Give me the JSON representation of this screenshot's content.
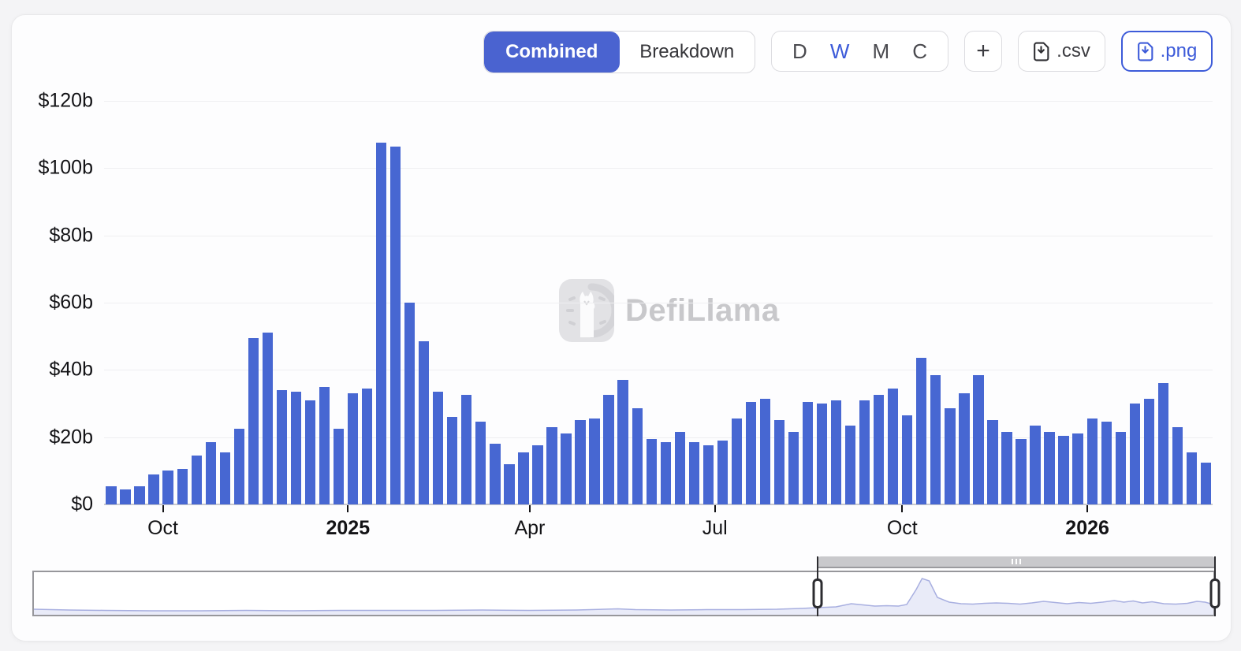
{
  "toolbar": {
    "view_toggle": {
      "options": [
        "Combined",
        "Breakdown"
      ],
      "selected": "Combined"
    },
    "interval": {
      "options": [
        "D",
        "W",
        "M",
        "C"
      ],
      "selected": "W"
    },
    "add_button": "+",
    "export_csv": ".csv",
    "export_png": ".png"
  },
  "watermark": {
    "brand": "DefiLlama"
  },
  "colors": {
    "accent": "#4a63d0",
    "link_blue": "#3d5bd9",
    "bar_blue": "#4767d2",
    "watermark_gray": "#c8c8cb"
  },
  "chart_data": {
    "type": "bar",
    "title": "",
    "xlabel": "",
    "ylabel": "",
    "ylim": [
      0,
      120
    ],
    "unit": "$ billions (weekly)",
    "grid": true,
    "legend": "none",
    "bar_color": "#4767d2",
    "y_ticks": [
      {
        "label": "$120b",
        "value": 120
      },
      {
        "label": "$100b",
        "value": 100
      },
      {
        "label": "$80b",
        "value": 80
      },
      {
        "label": "$60b",
        "value": 60
      },
      {
        "label": "$40b",
        "value": 40
      },
      {
        "label": "$20b",
        "value": 20
      },
      {
        "label": "$0",
        "value": 0
      }
    ],
    "x_ticks": [
      {
        "label": "Oct",
        "pct": 5.3,
        "bold": false
      },
      {
        "label": "2025",
        "pct": 22.0,
        "bold": true
      },
      {
        "label": "Apr",
        "pct": 38.4,
        "bold": false
      },
      {
        "label": "Jul",
        "pct": 55.1,
        "bold": false
      },
      {
        "label": "Oct",
        "pct": 72.0,
        "bold": false
      },
      {
        "label": "2026",
        "pct": 88.7,
        "bold": true
      }
    ],
    "values": [
      5.5,
      4.5,
      5.5,
      9,
      10,
      10.5,
      14.5,
      18.5,
      15.5,
      22.5,
      49.5,
      51,
      34,
      33.5,
      31,
      35,
      22.5,
      33,
      34.5,
      107.5,
      106.5,
      60,
      48.5,
      33.5,
      26,
      32.5,
      24.5,
      18,
      12,
      15.5,
      17.5,
      23,
      21,
      25,
      25.5,
      32.5,
      37,
      28.5,
      19.5,
      18.5,
      21.5,
      18.5,
      17.5,
      19,
      25.5,
      30.5,
      31.5,
      25,
      21.5,
      30.5,
      30,
      31,
      23.5,
      31,
      32.5,
      34.5,
      26.5,
      43.5,
      38.5,
      28.5,
      33,
      38.5,
      25,
      21.5,
      19.5,
      23.5,
      21.5,
      20.5,
      21,
      25.5,
      24.5,
      21.5,
      30,
      31.5,
      36,
      23,
      15.5,
      12.5
    ]
  },
  "minimap": {
    "selection_start_pct": 66.4,
    "selection_end_pct": 100,
    "area_fill": "#e9ebf8",
    "area_line": "#a8afe0",
    "points": [
      [
        0,
        7
      ],
      [
        3,
        6
      ],
      [
        6,
        5.5
      ],
      [
        10,
        5
      ],
      [
        14,
        5
      ],
      [
        18,
        5.5
      ],
      [
        22,
        5
      ],
      [
        26,
        5.5
      ],
      [
        30,
        5.5
      ],
      [
        34,
        5.5
      ],
      [
        38,
        6
      ],
      [
        42,
        5.5
      ],
      [
        46,
        6
      ],
      [
        49.5,
        7.5
      ],
      [
        51,
        6.5
      ],
      [
        54,
        6
      ],
      [
        57,
        6.5
      ],
      [
        60,
        6.5
      ],
      [
        63,
        7
      ],
      [
        65,
        8
      ],
      [
        66.4,
        9
      ],
      [
        68,
        10
      ],
      [
        69.3,
        14
      ],
      [
        70.3,
        12.5
      ],
      [
        71.3,
        11
      ],
      [
        72.3,
        11.5
      ],
      [
        73.3,
        11
      ],
      [
        74,
        13
      ],
      [
        74.8,
        32
      ],
      [
        75.3,
        46
      ],
      [
        75.9,
        43
      ],
      [
        76.6,
        22
      ],
      [
        77.6,
        16
      ],
      [
        78.6,
        14
      ],
      [
        79.6,
        13.5
      ],
      [
        80.6,
        14.5
      ],
      [
        81.6,
        15
      ],
      [
        82.6,
        14.5
      ],
      [
        83.6,
        13.5
      ],
      [
        84.6,
        15
      ],
      [
        85.6,
        17
      ],
      [
        86.6,
        15.5
      ],
      [
        87.6,
        14
      ],
      [
        88.6,
        15.5
      ],
      [
        89.6,
        14.5
      ],
      [
        90.6,
        16
      ],
      [
        91.6,
        18
      ],
      [
        92.4,
        16
      ],
      [
        93.2,
        17.5
      ],
      [
        94,
        15
      ],
      [
        94.8,
        16.5
      ],
      [
        95.8,
        14
      ],
      [
        96.8,
        13.5
      ],
      [
        97.8,
        14.5
      ],
      [
        98.6,
        17
      ],
      [
        99.3,
        16
      ],
      [
        100,
        13
      ]
    ]
  }
}
